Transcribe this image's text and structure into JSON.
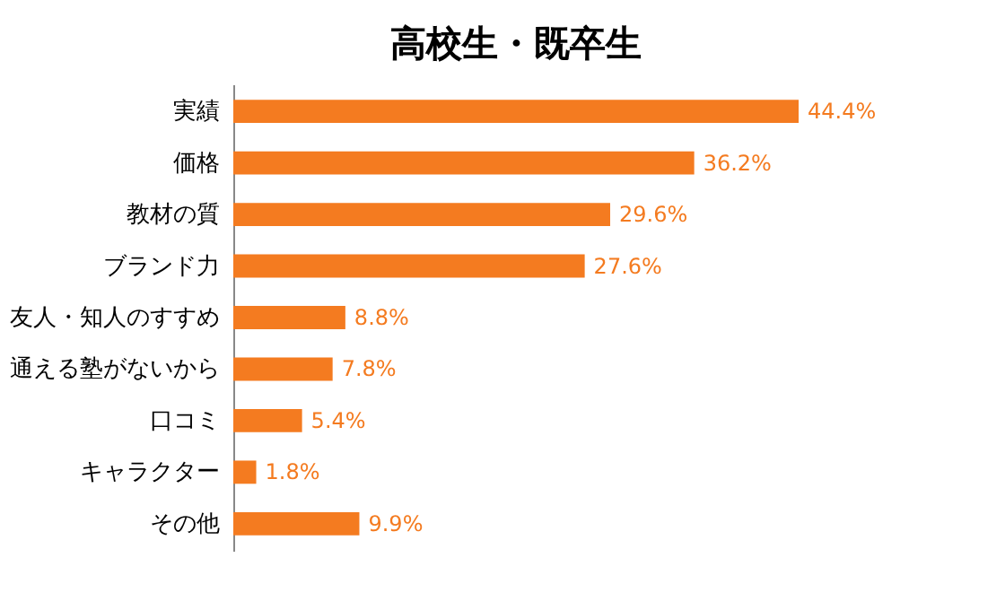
{
  "chart_data": {
    "type": "bar",
    "title": "高校生・既卒生",
    "orientation": "horizontal",
    "categories": [
      "実績",
      "価格",
      "教材の質",
      "ブランド力",
      "友人・知人のすすめ",
      "通える塾がないから",
      "口コミ",
      "キャラクター",
      "その他"
    ],
    "values": [
      44.4,
      36.2,
      29.6,
      27.6,
      8.8,
      7.8,
      5.4,
      1.8,
      9.9
    ],
    "value_labels": [
      "44.4%",
      "36.2%",
      "29.6%",
      "27.6%",
      "8.8%",
      "7.8%",
      "5.4%",
      "1.8%",
      "9.9%"
    ],
    "color": "#f47b20",
    "tick_labels": "y",
    "grid": false
  }
}
